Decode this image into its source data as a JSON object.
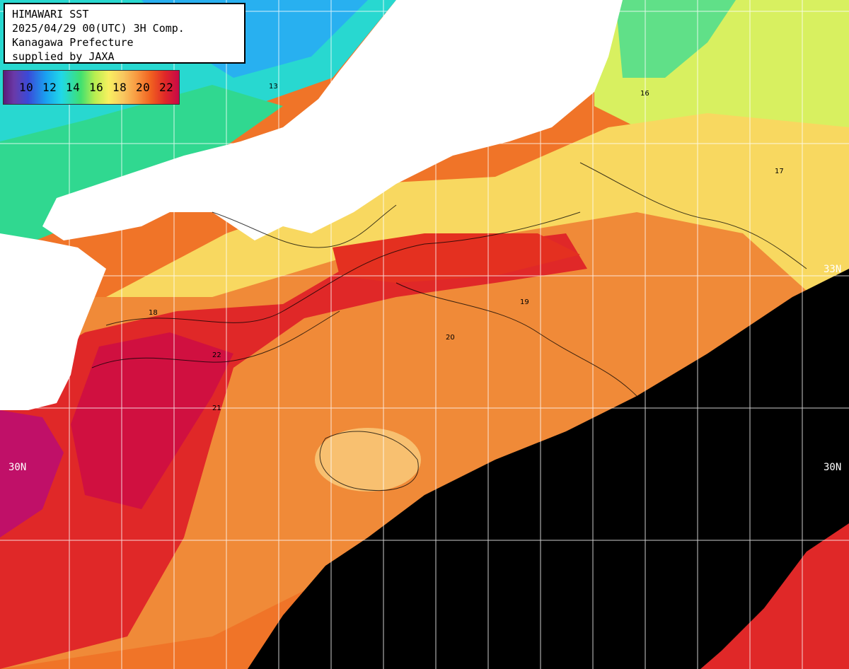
{
  "header": {
    "line1": "HIMAWARI SST",
    "line2": "2025/04/29 00(UTC) 3H Comp.",
    "line3": "Kanagawa Prefecture",
    "line4": "supplied by JAXA"
  },
  "legend": {
    "labels": [
      "10",
      "12",
      "14",
      "16",
      "18",
      "20",
      "22"
    ]
  },
  "lat_labels": {
    "lat33": "33N",
    "lat30": "30N"
  },
  "contour_labels": [
    "13",
    "16",
    "17",
    "18",
    "19",
    "20",
    "21",
    "22"
  ],
  "colors": {
    "land": "#ffffff",
    "cloud": "#000000",
    "warm_core": "#d81830",
    "grid": "#ffffff"
  }
}
